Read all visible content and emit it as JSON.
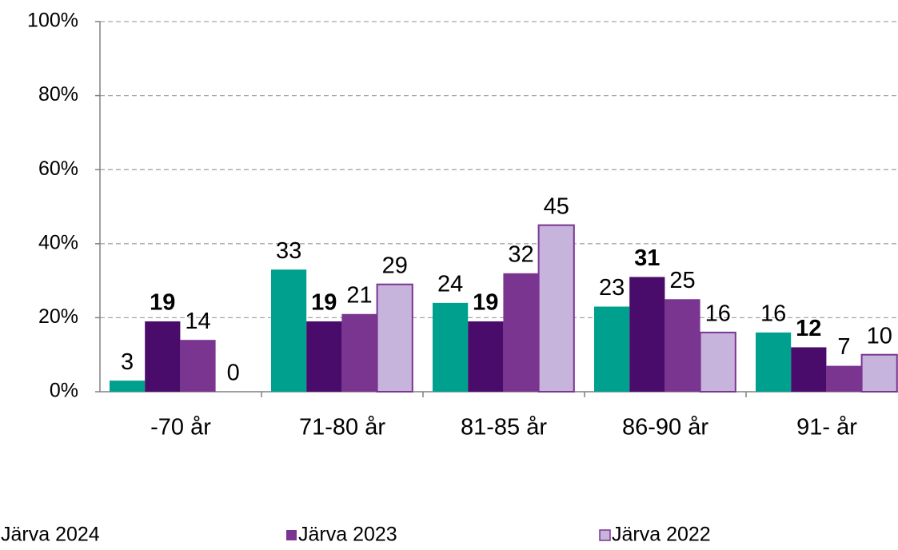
{
  "chart_data": {
    "type": "bar",
    "categories": [
      "-70 år",
      "71-80 år",
      "81-85 år",
      "86-90 år",
      "91- år"
    ],
    "series": [
      {
        "name": "Järva 2024",
        "color": "#00a08f",
        "values": [
          3,
          33,
          24,
          23,
          16
        ]
      },
      {
        "color": "#4a0c6b",
        "values": [
          19,
          19,
          19,
          31,
          12
        ],
        "bold_labels": true
      },
      {
        "name": "Järva 2023",
        "color": "#7a3590",
        "values": [
          14,
          21,
          32,
          25,
          7
        ]
      },
      {
        "name": "Järva 2022",
        "color": "#c6b4dc",
        "stroke": "#7a3590",
        "values": [
          0,
          29,
          45,
          16,
          10
        ]
      }
    ],
    "ylim": [
      0,
      100
    ],
    "yticks": [
      {
        "value": 0,
        "label": "0%"
      },
      {
        "value": 20,
        "label": "20%"
      },
      {
        "value": 40,
        "label": "40%"
      },
      {
        "value": 60,
        "label": "60%"
      },
      {
        "value": 80,
        "label": "80%"
      },
      {
        "value": 100,
        "label": "100%"
      }
    ],
    "grid": true,
    "legend": "bottom"
  }
}
